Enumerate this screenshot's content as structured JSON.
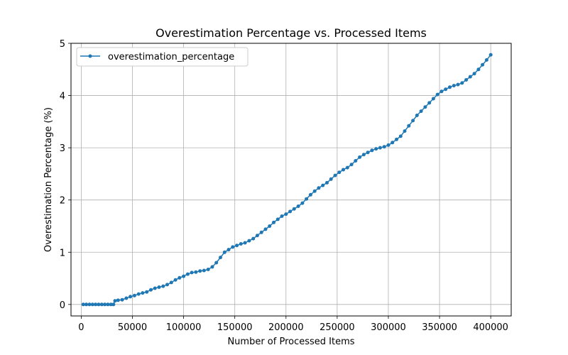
{
  "chart_data": {
    "type": "line",
    "title": "Overestimation Percentage vs. Processed Items",
    "xlabel": "Number of Processed Items",
    "ylabel": "Overestimation Percentage (%)",
    "xlim": [
      -10000,
      420000
    ],
    "ylim": [
      -0.22,
      5
    ],
    "xticks": [
      0,
      50000,
      100000,
      150000,
      200000,
      250000,
      300000,
      350000,
      400000
    ],
    "yticks": [
      0,
      1,
      2,
      3,
      4,
      5
    ],
    "grid": true,
    "legend_position": "upper-left",
    "series": [
      {
        "name": "overestimation_percentage",
        "color": "#1f77b4",
        "marker": "circle",
        "x": [
          2000,
          5000,
          8000,
          11000,
          14000,
          17000,
          20000,
          23000,
          26000,
          29000,
          31500,
          33000,
          36000,
          40000,
          44000,
          48000,
          52000,
          56000,
          60000,
          64000,
          68000,
          72000,
          76000,
          80000,
          84000,
          88000,
          92000,
          96000,
          100000,
          104000,
          108000,
          112000,
          116000,
          120000,
          124000,
          128000,
          132000,
          136000,
          140000,
          144000,
          148000,
          152000,
          156000,
          160000,
          164000,
          168000,
          172000,
          176000,
          180000,
          184000,
          188000,
          192000,
          196000,
          200000,
          204000,
          208000,
          212000,
          216000,
          220000,
          224000,
          228000,
          232000,
          236000,
          240000,
          244000,
          248000,
          252000,
          256000,
          260000,
          264000,
          268000,
          272000,
          276000,
          280000,
          284000,
          288000,
          292000,
          296000,
          300000,
          304000,
          308000,
          312000,
          316000,
          320000,
          324000,
          328000,
          332000,
          336000,
          340000,
          344000,
          348000,
          352000,
          356000,
          360000,
          364000,
          368000,
          372000,
          376000,
          380000,
          384000,
          388000,
          392000,
          396000,
          400000
        ],
        "y": [
          0,
          0,
          0,
          0,
          0,
          0,
          0,
          0,
          0,
          0,
          0,
          0.07,
          0.08,
          0.09,
          0.12,
          0.15,
          0.17,
          0.2,
          0.22,
          0.24,
          0.28,
          0.31,
          0.33,
          0.35,
          0.38,
          0.42,
          0.47,
          0.51,
          0.54,
          0.58,
          0.61,
          0.62,
          0.64,
          0.65,
          0.67,
          0.72,
          0.8,
          0.9,
          1.0,
          1.05,
          1.1,
          1.13,
          1.16,
          1.18,
          1.22,
          1.26,
          1.32,
          1.38,
          1.44,
          1.5,
          1.57,
          1.63,
          1.69,
          1.73,
          1.78,
          1.83,
          1.88,
          1.94,
          2.02,
          2.1,
          2.17,
          2.23,
          2.28,
          2.33,
          2.4,
          2.47,
          2.53,
          2.58,
          2.62,
          2.68,
          2.75,
          2.82,
          2.87,
          2.91,
          2.95,
          2.98,
          3.0,
          3.02,
          3.05,
          3.1,
          3.16,
          3.22,
          3.32,
          3.42,
          3.52,
          3.62,
          3.7,
          3.78,
          3.86,
          3.94,
          4.02,
          4.08,
          4.12,
          4.16,
          4.19,
          4.21,
          4.24,
          4.3,
          4.36,
          4.42,
          4.5,
          4.59,
          4.68,
          4.78
        ]
      }
    ]
  }
}
